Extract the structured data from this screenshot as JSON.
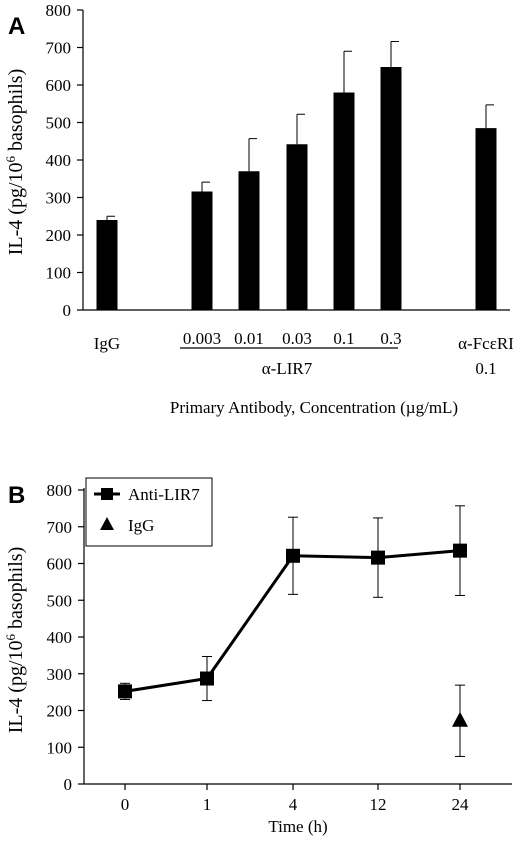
{
  "chart_data": [
    {
      "panel_label": "A",
      "type": "bar",
      "ylabel_main": "IL-4 (pg/10",
      "ylabel_sup": "6",
      "ylabel_end": " basophils)",
      "xlabel": "Primary Antibody, Concentration (µg/mL)",
      "ylim": [
        0,
        800
      ],
      "yticks": [
        "0",
        "100",
        "200",
        "300",
        "400",
        "500",
        "600",
        "700",
        "800"
      ],
      "bars": [
        {
          "label": "IgG",
          "value": 240,
          "error": 10
        },
        {
          "label": "0.003",
          "value": 316,
          "error": 25
        },
        {
          "label": "0.01",
          "value": 370,
          "error": 87
        },
        {
          "label": "0.03",
          "value": 442,
          "error": 80
        },
        {
          "label": "0.1",
          "value": 580,
          "error": 110
        },
        {
          "label": "0.3",
          "value": 648,
          "error": 68
        },
        {
          "label": "α-FcεRI",
          "sublabel": "0.1",
          "value": 485,
          "error": 62
        }
      ],
      "group_label": "α-LIR7"
    },
    {
      "panel_label": "B",
      "type": "line",
      "ylabel_main": "IL-4 (pg/10",
      "ylabel_sup": "6",
      "ylabel_end": " basophils)",
      "xlabel": "Time (h)",
      "ylim": [
        0,
        800
      ],
      "yticks": [
        "0",
        "100",
        "200",
        "300",
        "400",
        "500",
        "600",
        "700",
        "800"
      ],
      "categories": [
        "0",
        "1",
        "4",
        "12",
        "24"
      ],
      "series": [
        {
          "name": "Anti-LIR7",
          "marker": "square",
          "values": [
            252,
            287,
            621,
            616,
            635
          ],
          "errors": [
            22,
            60,
            105,
            108,
            122
          ]
        },
        {
          "name": "IgG",
          "marker": "triangle",
          "values": [
            null,
            null,
            null,
            null,
            172
          ],
          "errors": [
            null,
            null,
            null,
            null,
            97
          ]
        }
      ],
      "legend": "top-left"
    }
  ]
}
